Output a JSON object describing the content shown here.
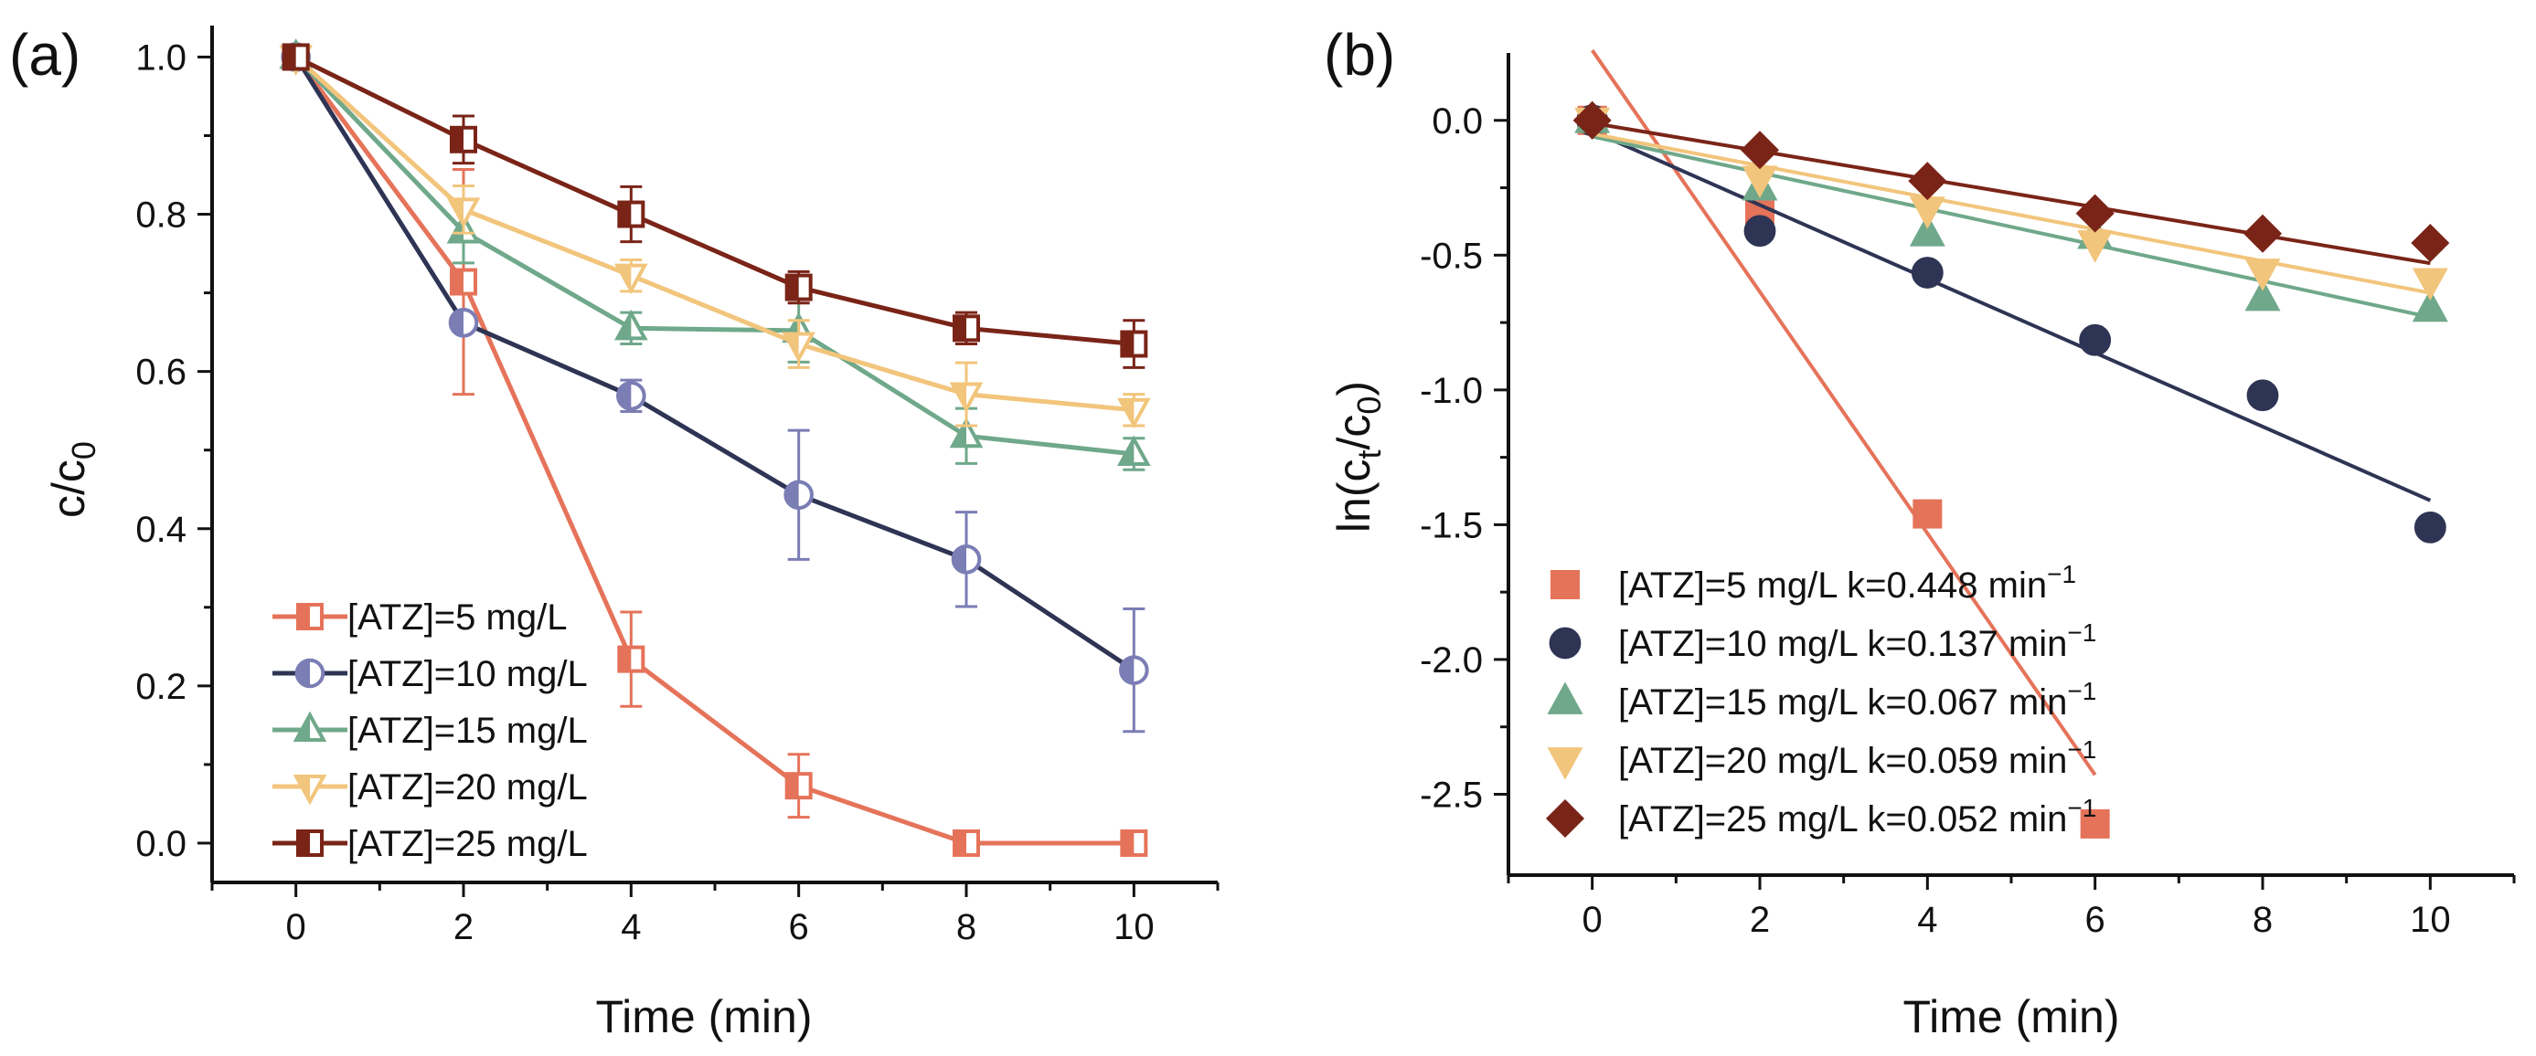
{
  "chart_data": [
    {
      "panel_label": "(a)",
      "type": "line",
      "xlabel": "Time (min)",
      "ylabel": "c/c",
      "ylabel_sub": "0",
      "xlim": [
        -1,
        11
      ],
      "ylim": [
        -0.05,
        1.04
      ],
      "xticks": [
        0,
        2,
        4,
        6,
        8,
        10
      ],
      "yticks": [
        "0.0",
        "0.2",
        "0.4",
        "0.6",
        "0.8",
        "1.0"
      ],
      "x": [
        0,
        2,
        4,
        6,
        8,
        10
      ],
      "series": [
        {
          "name": "[ATZ]=5 mg/L",
          "color": "#E5735A",
          "marker": "square",
          "values": [
            1.0,
            0.714,
            0.234,
            0.073,
            0.0,
            0.0
          ],
          "errors": [
            0.0,
            0.143,
            0.06,
            0.04,
            0.0,
            0.0
          ]
        },
        {
          "name": "[ATZ]=10 mg/L",
          "color": "#2E3454",
          "marker_color": "#7B7DB5",
          "marker": "circle",
          "values": [
            1.0,
            0.662,
            0.569,
            0.443,
            0.361,
            0.22
          ],
          "errors": [
            0.0,
            0.0,
            0.02,
            0.082,
            0.06,
            0.078
          ]
        },
        {
          "name": "[ATZ]=15 mg/L",
          "color": "#6FA88A",
          "marker": "triangle-up",
          "values": [
            1.0,
            0.778,
            0.655,
            0.652,
            0.518,
            0.495
          ],
          "errors": [
            0.0,
            0.04,
            0.02,
            0.04,
            0.035,
            0.02
          ]
        },
        {
          "name": "[ATZ]=20 mg/L",
          "color": "#F2C57C",
          "marker": "triangle-down",
          "values": [
            1.0,
            0.806,
            0.722,
            0.635,
            0.571,
            0.551
          ],
          "errors": [
            0.0,
            0.03,
            0.02,
            0.03,
            0.04,
            0.02
          ]
        },
        {
          "name": "[ATZ]=25 mg/L",
          "color": "#7A2418",
          "marker": "square",
          "values": [
            1.0,
            0.895,
            0.8,
            0.707,
            0.655,
            0.635
          ],
          "errors": [
            0.0,
            0.03,
            0.035,
            0.02,
            0.02,
            0.03
          ]
        }
      ]
    },
    {
      "panel_label": "(b)",
      "type": "scatter",
      "xlabel": "Time (min)",
      "ylabel": "ln(c",
      "ylabel_sub1": "t",
      "ylabel_mid": "/c",
      "ylabel_sub2": "0",
      "ylabel_end": ")",
      "xlim": [
        -1,
        11
      ],
      "ylim": [
        -2.8,
        0.25
      ],
      "xticks": [
        0,
        2,
        4,
        6,
        8,
        10
      ],
      "yticks": [
        "0.0",
        "-0.5",
        "-1.0",
        "-1.5",
        "-2.0",
        "-2.5"
      ],
      "yticks_values": [
        0.0,
        -0.5,
        -1.0,
        -1.5,
        -2.0,
        -2.5
      ],
      "x": [
        0,
        2,
        4,
        6,
        8,
        10
      ],
      "series": [
        {
          "name": "[ATZ]=5 mg/L",
          "k_label": "k=0.448 min",
          "k_sup": "−1",
          "color": "#E5735A",
          "marker": "square",
          "values": [
            0.0,
            -0.33,
            -1.46,
            -2.61,
            null,
            null
          ],
          "fit": {
            "slope": -0.448,
            "intercept": 0.26,
            "x_range": [
              0,
              6
            ]
          }
        },
        {
          "name": "[ATZ]=10 mg/L",
          "k_label": "k=0.137 min",
          "k_sup": "−1",
          "color": "#2E3454",
          "marker": "circle",
          "values": [
            0.0,
            -0.41,
            -0.565,
            -0.815,
            -1.02,
            -1.51
          ],
          "fit": {
            "slope": -0.137,
            "intercept": -0.04,
            "x_range": [
              0,
              10
            ]
          }
        },
        {
          "name": "[ATZ]=15 mg/L",
          "k_label": "k=0.067 min",
          "k_sup": "−1",
          "color": "#6FA88A",
          "marker": "triangle-up",
          "values": [
            0.0,
            -0.25,
            -0.42,
            -0.43,
            -0.66,
            -0.7
          ],
          "fit": {
            "slope": -0.067,
            "intercept": -0.06,
            "x_range": [
              0,
              10
            ]
          }
        },
        {
          "name": "[ATZ]=20 mg/L",
          "k_label": "k=0.059 min",
          "k_sup": "−1",
          "color": "#F2C57C",
          "marker": "triangle-down",
          "values": [
            0.0,
            -0.215,
            -0.33,
            -0.455,
            -0.56,
            -0.595
          ],
          "fit": {
            "slope": -0.059,
            "intercept": -0.05,
            "x_range": [
              0,
              10
            ]
          }
        },
        {
          "name": "[ATZ]=25 mg/L",
          "k_label": "k=0.052 min",
          "k_sup": "−1",
          "color": "#7A2418",
          "marker": "diamond",
          "values": [
            0.0,
            -0.11,
            -0.225,
            -0.345,
            -0.42,
            -0.455
          ],
          "fit": {
            "slope": -0.052,
            "intercept": -0.01,
            "x_range": [
              0,
              10
            ]
          }
        }
      ]
    }
  ]
}
